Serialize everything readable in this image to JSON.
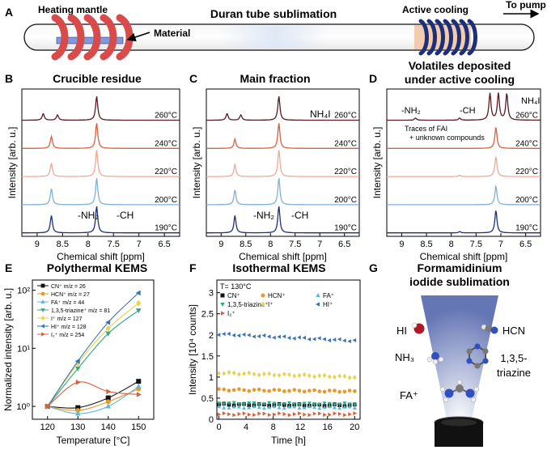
{
  "panels": {
    "A": {
      "letter": "A",
      "title": "Duran tube sublimation",
      "heating_label": "Heating mantle",
      "material_label": "Material",
      "cooling_label": "Active cooling",
      "pump_label": "To pump"
    },
    "B": {
      "letter": "B",
      "title": "Crucible residue"
    },
    "C": {
      "letter": "C",
      "title": "Main fraction"
    },
    "D": {
      "letter": "D",
      "title_line1": "Volatiles deposited",
      "title_line2": "under active cooling"
    },
    "E": {
      "letter": "E",
      "title": "Polythermal KEMS"
    },
    "F": {
      "letter": "F",
      "title": "Isothermal KEMS"
    },
    "G": {
      "letter": "G",
      "title_line1": "Formamidinium",
      "title_line2": "iodide sublimation",
      "labels": [
        "HI",
        "HCN",
        "NH₃",
        "1,3,5-",
        "triazine",
        "FA⁺"
      ]
    }
  },
  "colors": {
    "t260": "#5a1a22",
    "t240": "#d9603f",
    "t220": "#f0a898",
    "t200": "#7fb0d8",
    "t190": "#1c2f7a",
    "mantle": "#d94a4a",
    "coil": "#1c2f7a",
    "material": "#7f9ad6",
    "cool_band": "#f2c7a6"
  },
  "chart_data": [
    {
      "panel": "B",
      "type": "line",
      "xlabel": "Chemical shift [ppm]",
      "ylabel": "Intensity [arb. u.]",
      "xlim": [
        9.3,
        6.2
      ],
      "xticks": [
        "9",
        "8.5",
        "8",
        "7.5",
        "7",
        "6.5"
      ],
      "xtick_values": [
        9,
        8.5,
        8,
        7.5,
        7,
        6.5
      ],
      "series": [
        {
          "name": "260°C",
          "peaks": [
            [
              8.88,
              0.25
            ],
            [
              8.6,
              0.2
            ],
            [
              7.83,
              0.9
            ]
          ]
        },
        {
          "name": "240°C",
          "peaks": [
            [
              8.72,
              0.45
            ],
            [
              7.83,
              0.95
            ]
          ]
        },
        {
          "name": "220°C",
          "peaks": [
            [
              8.72,
              0.5
            ],
            [
              7.83,
              1.0
            ]
          ]
        },
        {
          "name": "200°C",
          "peaks": [
            [
              8.72,
              0.6
            ],
            [
              7.83,
              1.0
            ]
          ]
        },
        {
          "name": "190°C",
          "peaks": [
            [
              8.72,
              0.65
            ],
            [
              7.83,
              1.0
            ]
          ]
        }
      ],
      "annotations": [
        "-NH₂",
        "-CH"
      ]
    },
    {
      "panel": "C",
      "type": "line",
      "xlabel": "Chemical shift [ppm]",
      "ylabel": "Intensity [arb. u.]",
      "xlim": [
        9.3,
        6.2
      ],
      "xticks": [
        "9",
        "8.5",
        "8",
        "7.5",
        "7",
        "6.5"
      ],
      "xtick_values": [
        9,
        8.5,
        8,
        7.5,
        7,
        6.5
      ],
      "series": [
        {
          "name": "260°C",
          "peaks": [
            [
              8.88,
              0.25
            ],
            [
              8.6,
              0.2
            ],
            [
              7.83,
              0.9
            ]
          ]
        },
        {
          "name": "240°C",
          "peaks": [
            [
              8.72,
              0.35
            ],
            [
              7.83,
              0.95
            ]
          ]
        },
        {
          "name": "220°C",
          "peaks": [
            [
              8.72,
              0.45
            ],
            [
              7.83,
              1.0
            ]
          ]
        },
        {
          "name": "200°C",
          "peaks": [
            [
              8.72,
              0.55
            ],
            [
              7.83,
              1.0
            ]
          ]
        },
        {
          "name": "190°C",
          "peaks": [
            [
              8.72,
              0.65
            ],
            [
              7.83,
              1.0
            ]
          ]
        }
      ],
      "annotations": [
        "NH₄I",
        "-NH₂",
        "-CH"
      ]
    },
    {
      "panel": "D",
      "type": "line",
      "xlabel": "Chemical shift [ppm]",
      "ylabel": "Intensity [arb. u.]",
      "xlim": [
        9.3,
        6.2
      ],
      "xticks": [
        "9",
        "8.5",
        "8",
        "7.5",
        "7",
        "6.5"
      ],
      "xtick_values": [
        9,
        8.5,
        8,
        7.5,
        7,
        6.5
      ],
      "series": [
        {
          "name": "260°C",
          "peaks": [
            [
              8.72,
              0.08
            ],
            [
              7.83,
              0.08
            ],
            [
              7.22,
              1.0
            ],
            [
              7.05,
              1.0
            ],
            [
              6.88,
              1.0
            ]
          ]
        },
        {
          "name": "240°C",
          "peaks": [
            [
              7.1,
              0.8
            ]
          ]
        },
        {
          "name": "220°C",
          "peaks": [
            [
              7.1,
              0.75
            ],
            [
              7.83,
              0.05
            ]
          ]
        },
        {
          "name": "200°C",
          "peaks": [
            [
              7.1,
              0.7
            ]
          ]
        },
        {
          "name": "190°C",
          "peaks": [
            [
              7.1,
              0.85
            ],
            [
              7.83,
              0.05
            ]
          ]
        }
      ],
      "annotations": [
        "NH₄I",
        "-NH₂",
        "-CH",
        "Traces of FAI",
        "+ unknown compounds"
      ]
    },
    {
      "panel": "E",
      "type": "scatter",
      "xlabel": "Temperature [°C]",
      "ylabel": "Normalized intensity [arb. u.]",
      "xlim": [
        115,
        155
      ],
      "xticks": [
        "120",
        "130",
        "140",
        "150"
      ],
      "xtick_values": [
        120,
        130,
        140,
        150
      ],
      "yscale": "log",
      "ylim": [
        0.6,
        150
      ],
      "yticks": [
        "10⁰",
        "10¹",
        "10²"
      ],
      "ytick_values": [
        1,
        10,
        100
      ],
      "x": [
        120,
        130,
        140,
        150
      ],
      "series": [
        {
          "name": "CN⁺ m/z = 26",
          "marker": "square",
          "color": "#111111",
          "values": [
            1.0,
            0.95,
            1.4,
            2.7
          ]
        },
        {
          "name": "HCN⁺ m/z = 27",
          "marker": "circle",
          "color": "#e69a2e",
          "values": [
            1.0,
            0.85,
            1.2,
            2.0
          ]
        },
        {
          "name": "FA⁺ m/z = 44",
          "marker": "triangle-up",
          "color": "#5cb8d6",
          "values": [
            1.0,
            0.75,
            1.0,
            2.2
          ]
        },
        {
          "name": "1,3,5-triazine⁺ m/z = 81",
          "marker": "triangle-down",
          "color": "#2ea88a",
          "values": [
            1.0,
            4.5,
            18,
            45
          ]
        },
        {
          "name": "I⁺ m/z = 127",
          "marker": "diamond",
          "color": "#e8d24a",
          "values": [
            1.0,
            5.5,
            22,
            60
          ]
        },
        {
          "name": "HI⁺ m/z = 128",
          "marker": "triangle-left",
          "color": "#3a73b5",
          "values": [
            1.0,
            6.0,
            28,
            90
          ]
        },
        {
          "name": "I₂⁺ m/z = 254",
          "marker": "triangle-right",
          "color": "#d9603f",
          "values": [
            1.0,
            2.6,
            1.8,
            1.6
          ]
        }
      ]
    },
    {
      "panel": "F",
      "type": "scatter",
      "annotation": "T= 130°C",
      "xlabel": "Time [h]",
      "ylabel": "Intensity [10⁴ counts]",
      "xlim": [
        -0.3,
        20.8
      ],
      "xticks": [
        "0",
        "4",
        "8",
        "12",
        "16",
        "20"
      ],
      "xtick_values": [
        0,
        4,
        8,
        12,
        16,
        20
      ],
      "ylim": [
        0,
        3.3
      ],
      "yticks": [
        "0",
        "0.5",
        "1",
        "1.5",
        "2",
        "2.5",
        "3"
      ],
      "ytick_values": [
        0,
        0.5,
        1,
        1.5,
        2,
        2.5,
        3
      ],
      "time_range": [
        0,
        20
      ],
      "points": 28,
      "series": [
        {
          "name": "CN⁺",
          "marker": "square",
          "color": "#111111",
          "level": 0.35,
          "slope": -0.001
        },
        {
          "name": "HCN⁺",
          "marker": "circle",
          "color": "#e69a2e",
          "level": 0.7,
          "slope": -0.002
        },
        {
          "name": "FA⁺",
          "marker": "triangle-up",
          "color": "#5cb8d6",
          "level": 0.28,
          "slope": 0.0
        },
        {
          "name": "1,3,5-triazine⁺",
          "marker": "triangle-down",
          "color": "#2ea88a",
          "level": 0.38,
          "slope": -0.001
        },
        {
          "name": "I⁺",
          "marker": "diamond",
          "color": "#e8d24a",
          "level": 1.1,
          "slope": -0.005
        },
        {
          "name": "HI⁺",
          "marker": "triangle-left",
          "color": "#3a73b5",
          "level": 2.02,
          "slope": -0.008
        },
        {
          "name": "I₂⁺",
          "marker": "triangle-right",
          "color": "#d9603f",
          "level": 0.12,
          "slope": 0.0
        }
      ]
    }
  ]
}
